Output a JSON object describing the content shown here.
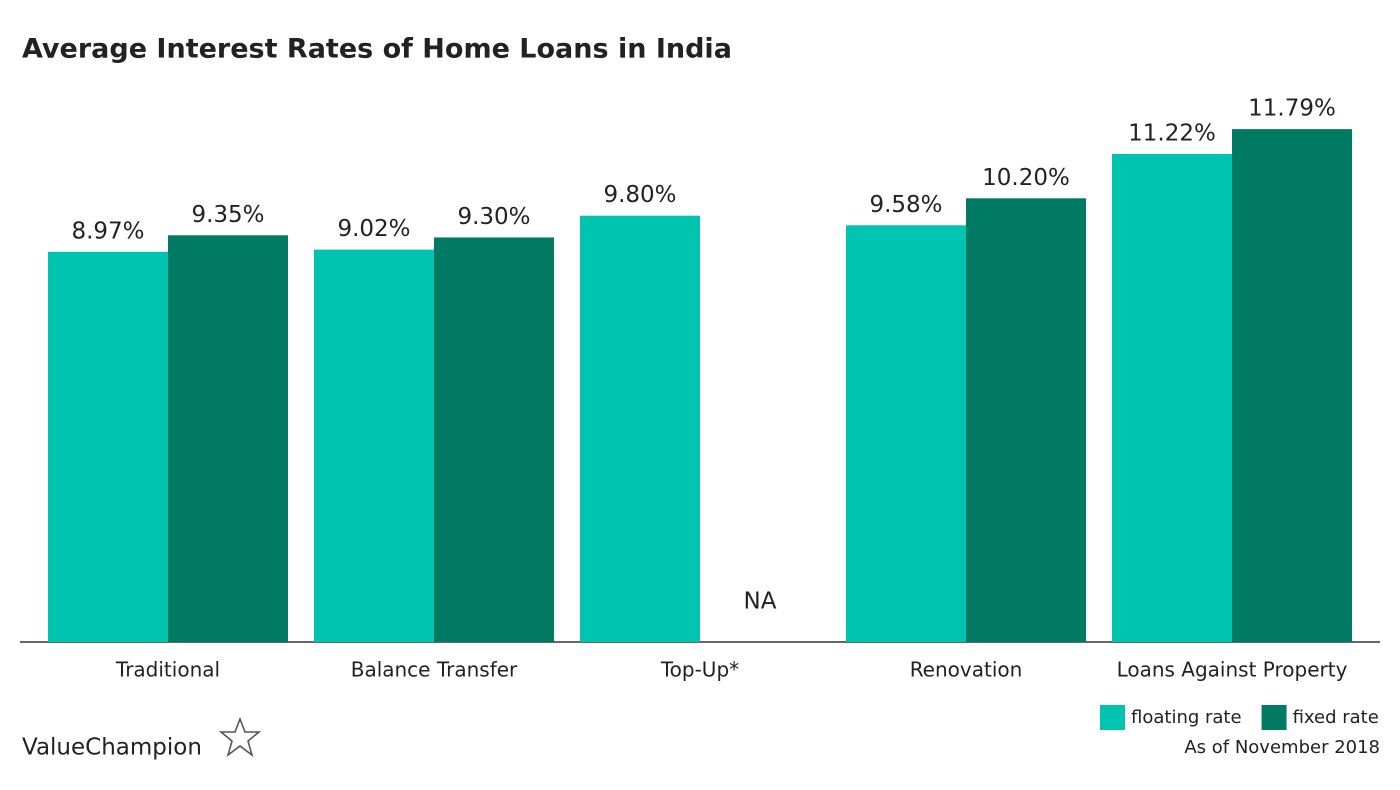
{
  "chart_data": {
    "type": "bar",
    "title": "Average Interest Rates of Home Loans in India",
    "categories": [
      "Traditional",
      "Balance Transfer",
      "Top-Up*",
      "Renovation",
      "Loans Against Property"
    ],
    "series": [
      {
        "name": "floating rate",
        "color": "#00c4b0",
        "values": [
          8.97,
          9.02,
          9.8,
          9.58,
          11.22
        ],
        "value_labels": [
          "8.97%",
          "9.02%",
          "9.80%",
          "9.58%",
          "11.22%"
        ]
      },
      {
        "name": "fixed rate",
        "color": "#007a63",
        "values": [
          9.35,
          9.3,
          null,
          10.2,
          11.79
        ],
        "value_labels": [
          "9.35%",
          "9.30%",
          "NA",
          "10.20%",
          "11.79%"
        ]
      }
    ],
    "ylim": [
      0,
      12
    ],
    "legend": "bottom-right",
    "note": "As of November 2018",
    "brand": "ValueChampion"
  }
}
